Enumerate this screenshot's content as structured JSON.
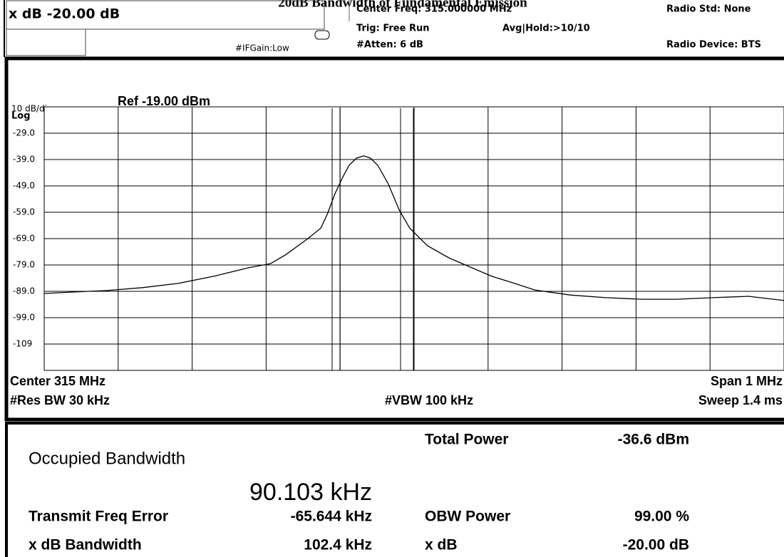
{
  "header": {
    "title": "20dB Bandwidth of Fundamental Emission",
    "xdb": "x dB -20.00 dB",
    "ifgain": "#IFGain:Low",
    "center_freq": "Center Freq: 315.000000 MHz",
    "trig": "Trig: Free Run",
    "avg": "Avg|Hold:>10/10",
    "atten": "#Atten: 6 dB",
    "radio_std": "Radio Std: None",
    "radio_device": "Radio Device: BTS"
  },
  "plot_labels": {
    "scale": "10 dB/div",
    "ref": "Ref -19.00 dBm",
    "log": "Log",
    "center": "Center 315 MHz",
    "span": "Span 1 MHz",
    "res_bw": "#Res BW 30 kHz",
    "vbw": "#VBW 100 kHz",
    "sweep": "Sweep 1.4 ms"
  },
  "chart_data": {
    "type": "line",
    "x": [
      314.5,
      314.537,
      314.585,
      314.633,
      314.681,
      314.729,
      314.777,
      314.806,
      314.826,
      314.855,
      314.874,
      314.883,
      314.893,
      314.903,
      314.912,
      314.922,
      314.932,
      314.941,
      314.951,
      314.965,
      314.98,
      314.994,
      315.018,
      315.047,
      315.076,
      315.105,
      315.134,
      315.163,
      315.211,
      315.259,
      315.307,
      315.355,
      315.404,
      315.452,
      315.5
    ],
    "series": [
      {
        "color": "#000000",
        "values": [
          -89.8,
          -89.3,
          -88.7,
          -87.6,
          -86,
          -83.3,
          -80,
          -78.5,
          -75.2,
          -69.3,
          -65,
          -59.5,
          -52,
          -46,
          -41.2,
          -38.5,
          -37.6,
          -38.5,
          -41.2,
          -48.2,
          -58.2,
          -65,
          -71.7,
          -76.3,
          -79.8,
          -83.3,
          -85.8,
          -88.5,
          -90.4,
          -91.4,
          -92,
          -92,
          -91.4,
          -90.9,
          -92.5
        ]
      }
    ],
    "xlim": [
      314.5,
      315.5
    ],
    "ylim": [
      -119,
      -19
    ],
    "yticks": [
      {
        "value": -29,
        "label": "-29.0"
      },
      {
        "value": -39,
        "label": "-39.0"
      },
      {
        "value": -49,
        "label": "-49.0"
      },
      {
        "value": -59,
        "label": "-59.0"
      },
      {
        "value": -69,
        "label": "-69.0"
      },
      {
        "value": -79,
        "label": "-79.0"
      },
      {
        "value": -89,
        "label": "-89.0"
      },
      {
        "value": -99,
        "label": "-99.0"
      },
      -109
    ],
    "grid": true
  },
  "results": {
    "obw_label": "Occupied Bandwidth",
    "obw_value": "90.103 kHz",
    "total_power_label": "Total Power",
    "total_power_value": "-36.6 dBm",
    "freq_error_label": "Transmit Freq Error",
    "freq_error_value": "-65.644 kHz",
    "obw_power_label": "OBW Power",
    "obw_power_value": "99.00 %",
    "xdb_bw_label": "x dB Bandwidth",
    "xdb_bw_value": "102.4 kHz",
    "xdb_label": "x dB",
    "xdb_value": "-20.00 dB"
  }
}
